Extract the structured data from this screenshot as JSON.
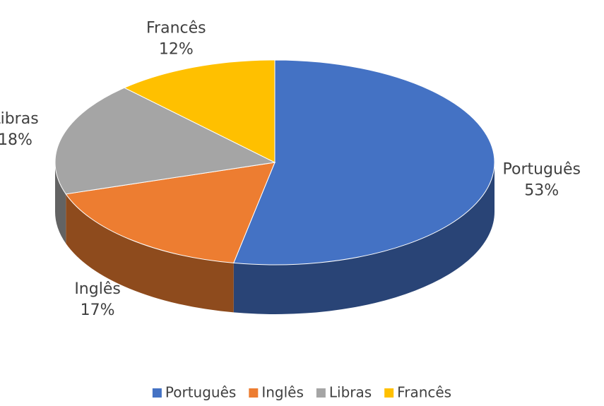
{
  "chart_data": {
    "type": "pie",
    "categories": [
      "Português",
      "Inglês",
      "Libras",
      "Francês"
    ],
    "values": [
      53,
      17,
      18,
      12
    ],
    "value_labels": [
      "53%",
      "17%",
      "18%",
      "12%"
    ],
    "colors": [
      "#4472c4",
      "#ed7d31",
      "#a5a5a5",
      "#ffc000"
    ],
    "legend": "bottom"
  }
}
